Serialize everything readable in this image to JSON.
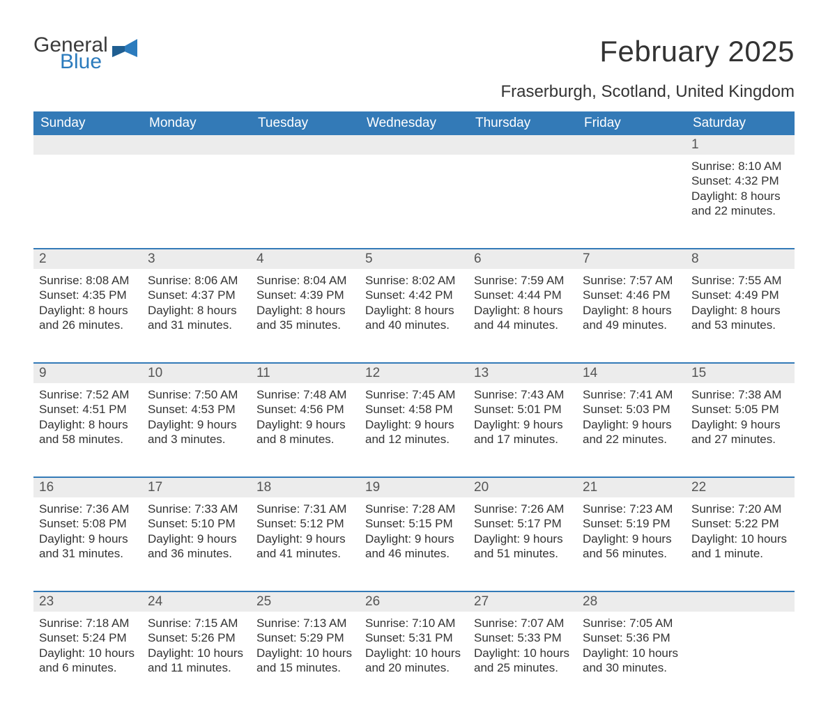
{
  "brand": {
    "text1": "General",
    "text2": "Blue",
    "flag_color": "#2b7bbd",
    "text1_color": "#3b3b3b",
    "text2_color": "#2b7bbd"
  },
  "header": {
    "month_title": "February 2025",
    "location": "Fraserburgh, Scotland, United Kingdom"
  },
  "colors": {
    "header_bar": "#337ab7",
    "header_text": "#ffffff",
    "daynum_band": "#ececec",
    "row_divider": "#337ab7",
    "body_text": "#333333",
    "background": "#ffffff"
  },
  "weekdays": [
    "Sunday",
    "Monday",
    "Tuesday",
    "Wednesday",
    "Thursday",
    "Friday",
    "Saturday"
  ],
  "weeks": [
    [
      {
        "day": "",
        "sunrise": "",
        "sunset": "",
        "daylight": ""
      },
      {
        "day": "",
        "sunrise": "",
        "sunset": "",
        "daylight": ""
      },
      {
        "day": "",
        "sunrise": "",
        "sunset": "",
        "daylight": ""
      },
      {
        "day": "",
        "sunrise": "",
        "sunset": "",
        "daylight": ""
      },
      {
        "day": "",
        "sunrise": "",
        "sunset": "",
        "daylight": ""
      },
      {
        "day": "",
        "sunrise": "",
        "sunset": "",
        "daylight": ""
      },
      {
        "day": "1",
        "sunrise": "Sunrise: 8:10 AM",
        "sunset": "Sunset: 4:32 PM",
        "daylight": "Daylight: 8 hours and 22 minutes."
      }
    ],
    [
      {
        "day": "2",
        "sunrise": "Sunrise: 8:08 AM",
        "sunset": "Sunset: 4:35 PM",
        "daylight": "Daylight: 8 hours and 26 minutes."
      },
      {
        "day": "3",
        "sunrise": "Sunrise: 8:06 AM",
        "sunset": "Sunset: 4:37 PM",
        "daylight": "Daylight: 8 hours and 31 minutes."
      },
      {
        "day": "4",
        "sunrise": "Sunrise: 8:04 AM",
        "sunset": "Sunset: 4:39 PM",
        "daylight": "Daylight: 8 hours and 35 minutes."
      },
      {
        "day": "5",
        "sunrise": "Sunrise: 8:02 AM",
        "sunset": "Sunset: 4:42 PM",
        "daylight": "Daylight: 8 hours and 40 minutes."
      },
      {
        "day": "6",
        "sunrise": "Sunrise: 7:59 AM",
        "sunset": "Sunset: 4:44 PM",
        "daylight": "Daylight: 8 hours and 44 minutes."
      },
      {
        "day": "7",
        "sunrise": "Sunrise: 7:57 AM",
        "sunset": "Sunset: 4:46 PM",
        "daylight": "Daylight: 8 hours and 49 minutes."
      },
      {
        "day": "8",
        "sunrise": "Sunrise: 7:55 AM",
        "sunset": "Sunset: 4:49 PM",
        "daylight": "Daylight: 8 hours and 53 minutes."
      }
    ],
    [
      {
        "day": "9",
        "sunrise": "Sunrise: 7:52 AM",
        "sunset": "Sunset: 4:51 PM",
        "daylight": "Daylight: 8 hours and 58 minutes."
      },
      {
        "day": "10",
        "sunrise": "Sunrise: 7:50 AM",
        "sunset": "Sunset: 4:53 PM",
        "daylight": "Daylight: 9 hours and 3 minutes."
      },
      {
        "day": "11",
        "sunrise": "Sunrise: 7:48 AM",
        "sunset": "Sunset: 4:56 PM",
        "daylight": "Daylight: 9 hours and 8 minutes."
      },
      {
        "day": "12",
        "sunrise": "Sunrise: 7:45 AM",
        "sunset": "Sunset: 4:58 PM",
        "daylight": "Daylight: 9 hours and 12 minutes."
      },
      {
        "day": "13",
        "sunrise": "Sunrise: 7:43 AM",
        "sunset": "Sunset: 5:01 PM",
        "daylight": "Daylight: 9 hours and 17 minutes."
      },
      {
        "day": "14",
        "sunrise": "Sunrise: 7:41 AM",
        "sunset": "Sunset: 5:03 PM",
        "daylight": "Daylight: 9 hours and 22 minutes."
      },
      {
        "day": "15",
        "sunrise": "Sunrise: 7:38 AM",
        "sunset": "Sunset: 5:05 PM",
        "daylight": "Daylight: 9 hours and 27 minutes."
      }
    ],
    [
      {
        "day": "16",
        "sunrise": "Sunrise: 7:36 AM",
        "sunset": "Sunset: 5:08 PM",
        "daylight": "Daylight: 9 hours and 31 minutes."
      },
      {
        "day": "17",
        "sunrise": "Sunrise: 7:33 AM",
        "sunset": "Sunset: 5:10 PM",
        "daylight": "Daylight: 9 hours and 36 minutes."
      },
      {
        "day": "18",
        "sunrise": "Sunrise: 7:31 AM",
        "sunset": "Sunset: 5:12 PM",
        "daylight": "Daylight: 9 hours and 41 minutes."
      },
      {
        "day": "19",
        "sunrise": "Sunrise: 7:28 AM",
        "sunset": "Sunset: 5:15 PM",
        "daylight": "Daylight: 9 hours and 46 minutes."
      },
      {
        "day": "20",
        "sunrise": "Sunrise: 7:26 AM",
        "sunset": "Sunset: 5:17 PM",
        "daylight": "Daylight: 9 hours and 51 minutes."
      },
      {
        "day": "21",
        "sunrise": "Sunrise: 7:23 AM",
        "sunset": "Sunset: 5:19 PM",
        "daylight": "Daylight: 9 hours and 56 minutes."
      },
      {
        "day": "22",
        "sunrise": "Sunrise: 7:20 AM",
        "sunset": "Sunset: 5:22 PM",
        "daylight": "Daylight: 10 hours and 1 minute."
      }
    ],
    [
      {
        "day": "23",
        "sunrise": "Sunrise: 7:18 AM",
        "sunset": "Sunset: 5:24 PM",
        "daylight": "Daylight: 10 hours and 6 minutes."
      },
      {
        "day": "24",
        "sunrise": "Sunrise: 7:15 AM",
        "sunset": "Sunset: 5:26 PM",
        "daylight": "Daylight: 10 hours and 11 minutes."
      },
      {
        "day": "25",
        "sunrise": "Sunrise: 7:13 AM",
        "sunset": "Sunset: 5:29 PM",
        "daylight": "Daylight: 10 hours and 15 minutes."
      },
      {
        "day": "26",
        "sunrise": "Sunrise: 7:10 AM",
        "sunset": "Sunset: 5:31 PM",
        "daylight": "Daylight: 10 hours and 20 minutes."
      },
      {
        "day": "27",
        "sunrise": "Sunrise: 7:07 AM",
        "sunset": "Sunset: 5:33 PM",
        "daylight": "Daylight: 10 hours and 25 minutes."
      },
      {
        "day": "28",
        "sunrise": "Sunrise: 7:05 AM",
        "sunset": "Sunset: 5:36 PM",
        "daylight": "Daylight: 10 hours and 30 minutes."
      },
      {
        "day": "",
        "sunrise": "",
        "sunset": "",
        "daylight": ""
      }
    ]
  ]
}
